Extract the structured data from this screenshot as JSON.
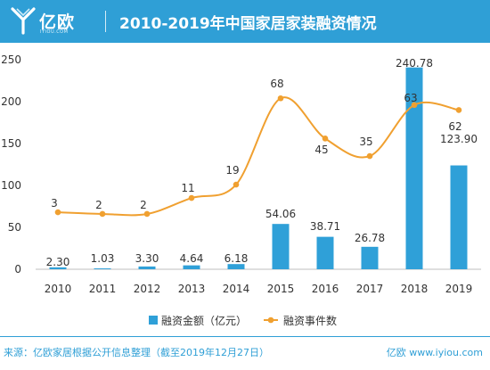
{
  "header": {
    "logo_text": "亿欧",
    "logo_sub": "IYIOU.COM",
    "title": "2010-2019年中国家居家装融资情况"
  },
  "footer": {
    "source": "来源：亿欧家居根据公开信息整理（截至2019年12月27日）",
    "brand": "亿欧 www.iyiou.com"
  },
  "colors": {
    "header_bg": "#2f9fd6",
    "bar": "#2fa0d8",
    "line": "#f0a030"
  },
  "chart_data": {
    "type": "bar",
    "categories": [
      "2010",
      "2011",
      "2012",
      "2013",
      "2014",
      "2015",
      "2016",
      "2017",
      "2018",
      "2019"
    ],
    "ylim": [
      0,
      250
    ],
    "yticks": [
      0,
      50,
      100,
      150,
      200,
      250
    ],
    "grid": false,
    "legend_position": "bottom",
    "series": [
      {
        "name": "融资金额（亿元）",
        "type": "bar",
        "values": [
          2.3,
          1.03,
          3.3,
          4.64,
          6.18,
          54.06,
          38.71,
          26.78,
          240.78,
          123.9
        ],
        "labels": [
          "2.30",
          "1.03",
          "3.30",
          "4.64",
          "6.18",
          "54.06",
          "38.71",
          "26.78",
          "240.78",
          "123.90"
        ]
      },
      {
        "name": "融资事件数",
        "type": "line",
        "values": [
          3,
          2,
          2,
          11,
          19,
          68,
          45,
          35,
          63,
          62
        ],
        "plotted": [
          68,
          66,
          66,
          85,
          101,
          204,
          156,
          135,
          196,
          190
        ],
        "labels": [
          "3",
          "2",
          "2",
          "11",
          "19",
          "68",
          "45",
          "35",
          "63",
          "62"
        ]
      }
    ]
  }
}
